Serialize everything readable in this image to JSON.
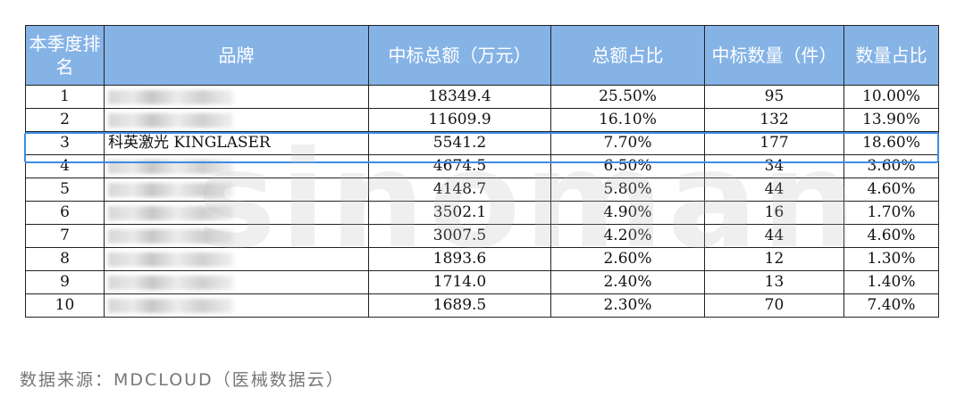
{
  "table": {
    "headers": [
      "本季度排名",
      "品牌",
      "中标总额（万元）",
      "总额占比",
      "中标数量（件）",
      "数量占比"
    ],
    "rows": [
      {
        "rank": "1",
        "brand": "",
        "amount": "18349.4",
        "amount_share": "25.50%",
        "count": "95",
        "count_share": "10.00%"
      },
      {
        "rank": "2",
        "brand": "",
        "amount": "11609.9",
        "amount_share": "16.10%",
        "count": "132",
        "count_share": "13.90%"
      },
      {
        "rank": "3",
        "brand": "科英激光 KINGLASER",
        "amount": "5541.2",
        "amount_share": "7.70%",
        "count": "177",
        "count_share": "18.60%"
      },
      {
        "rank": "4",
        "brand": "",
        "amount": "4674.5",
        "amount_share": "6.50%",
        "count": "34",
        "count_share": "3.60%"
      },
      {
        "rank": "5",
        "brand": "",
        "amount": "4148.7",
        "amount_share": "5.80%",
        "count": "44",
        "count_share": "4.60%"
      },
      {
        "rank": "6",
        "brand": "",
        "amount": "3502.1",
        "amount_share": "4.90%",
        "count": "16",
        "count_share": "1.70%"
      },
      {
        "rank": "7",
        "brand": "",
        "amount": "3007.5",
        "amount_share": "4.20%",
        "count": "44",
        "count_share": "4.60%"
      },
      {
        "rank": "8",
        "brand": "",
        "amount": "1893.6",
        "amount_share": "2.60%",
        "count": "12",
        "count_share": "1.30%"
      },
      {
        "rank": "9",
        "brand": "",
        "amount": "1714.0",
        "amount_share": "2.40%",
        "count": "13",
        "count_share": "1.40%"
      },
      {
        "rank": "10",
        "brand": "",
        "amount": "1689.5",
        "amount_share": "2.30%",
        "count": "70",
        "count_share": "7.40%"
      }
    ]
  },
  "watermark": "sinoman",
  "source": "数据来源：MDCLOUD（医械数据云）",
  "colors": {
    "header_bg": "#86b3e6",
    "highlight": "#3a8ee6"
  }
}
